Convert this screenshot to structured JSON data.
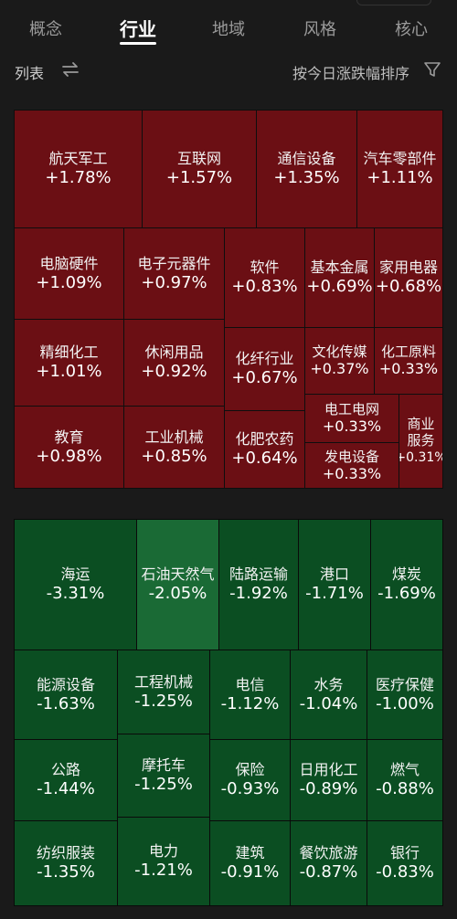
{
  "tabs": [
    {
      "label": "概念",
      "active": false
    },
    {
      "label": "行业",
      "active": true
    },
    {
      "label": "地域",
      "active": false
    },
    {
      "label": "风格",
      "active": false
    },
    {
      "label": "核心",
      "active": false
    }
  ],
  "toolbar": {
    "list_label": "列表",
    "sort_label": "按今日涨跌幅排序"
  },
  "colors": {
    "up_tile": "#6b0f14",
    "down_tile": "#0b4e22",
    "down_tile_light": "#1a6a35",
    "background": "#1a1a1a"
  },
  "gainers": [
    {
      "name": "航天军工",
      "change": "+1.78%"
    },
    {
      "name": "互联网",
      "change": "+1.57%"
    },
    {
      "name": "通信设备",
      "change": "+1.35%"
    },
    {
      "name": "汽车零部件",
      "change": "+1.11%"
    },
    {
      "name": "电脑硬件",
      "change": "+1.09%"
    },
    {
      "name": "电子元器件",
      "change": "+0.97%"
    },
    {
      "name": "软件",
      "change": "+0.83%"
    },
    {
      "name": "基本金属",
      "change": "+0.69%"
    },
    {
      "name": "家用电器",
      "change": "+0.68%"
    },
    {
      "name": "精细化工",
      "change": "+1.01%"
    },
    {
      "name": "休闲用品",
      "change": "+0.92%"
    },
    {
      "name": "化纤行业",
      "change": "+0.67%"
    },
    {
      "name": "文化传媒",
      "change": "+0.37%"
    },
    {
      "name": "化工原料",
      "change": "+0.33%"
    },
    {
      "name": "教育",
      "change": "+0.98%"
    },
    {
      "name": "工业机械",
      "change": "+0.85%"
    },
    {
      "name": "化肥农药",
      "change": "+0.64%"
    },
    {
      "name": "电工电网",
      "change": "+0.33%"
    },
    {
      "name": "发电设备",
      "change": "+0.33%"
    },
    {
      "name": "商业服务",
      "name_line1": "商业",
      "name_line2": "服务",
      "change": "+0.31%"
    }
  ],
  "losers": [
    {
      "name": "海运",
      "change": "-3.31%"
    },
    {
      "name": "石油天然气",
      "change": "-2.05%"
    },
    {
      "name": "陆路运输",
      "change": "-1.92%"
    },
    {
      "name": "港口",
      "change": "-1.71%"
    },
    {
      "name": "煤炭",
      "change": "-1.69%"
    },
    {
      "name": "能源设备",
      "change": "-1.63%"
    },
    {
      "name": "工程机械",
      "change": "-1.25%"
    },
    {
      "name": "电信",
      "change": "-1.12%"
    },
    {
      "name": "水务",
      "change": "-1.04%"
    },
    {
      "name": "医疗保健",
      "change": "-1.00%"
    },
    {
      "name": "公路",
      "change": "-1.44%"
    },
    {
      "name": "摩托车",
      "change": "-1.25%"
    },
    {
      "name": "保险",
      "change": "-0.93%"
    },
    {
      "name": "日用化工",
      "change": "-0.89%"
    },
    {
      "name": "燃气",
      "change": "-0.88%"
    },
    {
      "name": "纺织服装",
      "change": "-1.35%"
    },
    {
      "name": "电力",
      "change": "-1.21%"
    },
    {
      "name": "建筑",
      "change": "-0.91%"
    },
    {
      "name": "餐饮旅游",
      "change": "-0.87%"
    },
    {
      "name": "银行",
      "change": "-0.83%"
    }
  ]
}
